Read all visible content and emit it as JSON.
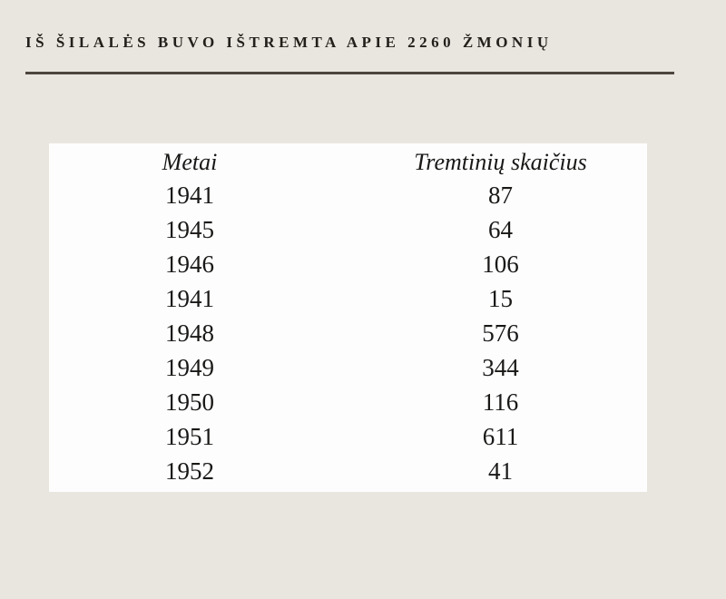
{
  "page": {
    "title": "IŠ ŠILALĖS BUVO IŠTREMTA APIE 2260 ŽMONIŲ",
    "background_color": "#e9e6e0",
    "rule_color": "#4c463e",
    "card_color": "#fdfdfd",
    "text_color": "#191816"
  },
  "chart_data": {
    "type": "table",
    "title": "IŠ ŠILALĖS BUVO IŠTREMTA APIE 2260 ŽMONIŲ",
    "columns": [
      "Metai",
      "Tremtinių skaičius"
    ],
    "rows": [
      {
        "metai": "1941",
        "skaicius": "87"
      },
      {
        "metai": "1945",
        "skaicius": "64"
      },
      {
        "metai": "1946",
        "skaicius": "106"
      },
      {
        "metai": "1941",
        "skaicius": "15"
      },
      {
        "metai": "1948",
        "skaicius": "576"
      },
      {
        "metai": "1949",
        "skaicius": "344"
      },
      {
        "metai": "1950",
        "skaicius": "116"
      },
      {
        "metai": "1951",
        "skaicius": "611"
      },
      {
        "metai": "1952",
        "skaicius": "41"
      }
    ],
    "total_mentioned_in_title": 2260
  },
  "table": {
    "header": {
      "year_label": "Metai",
      "count_label": "Tremtinių skaičius"
    }
  }
}
